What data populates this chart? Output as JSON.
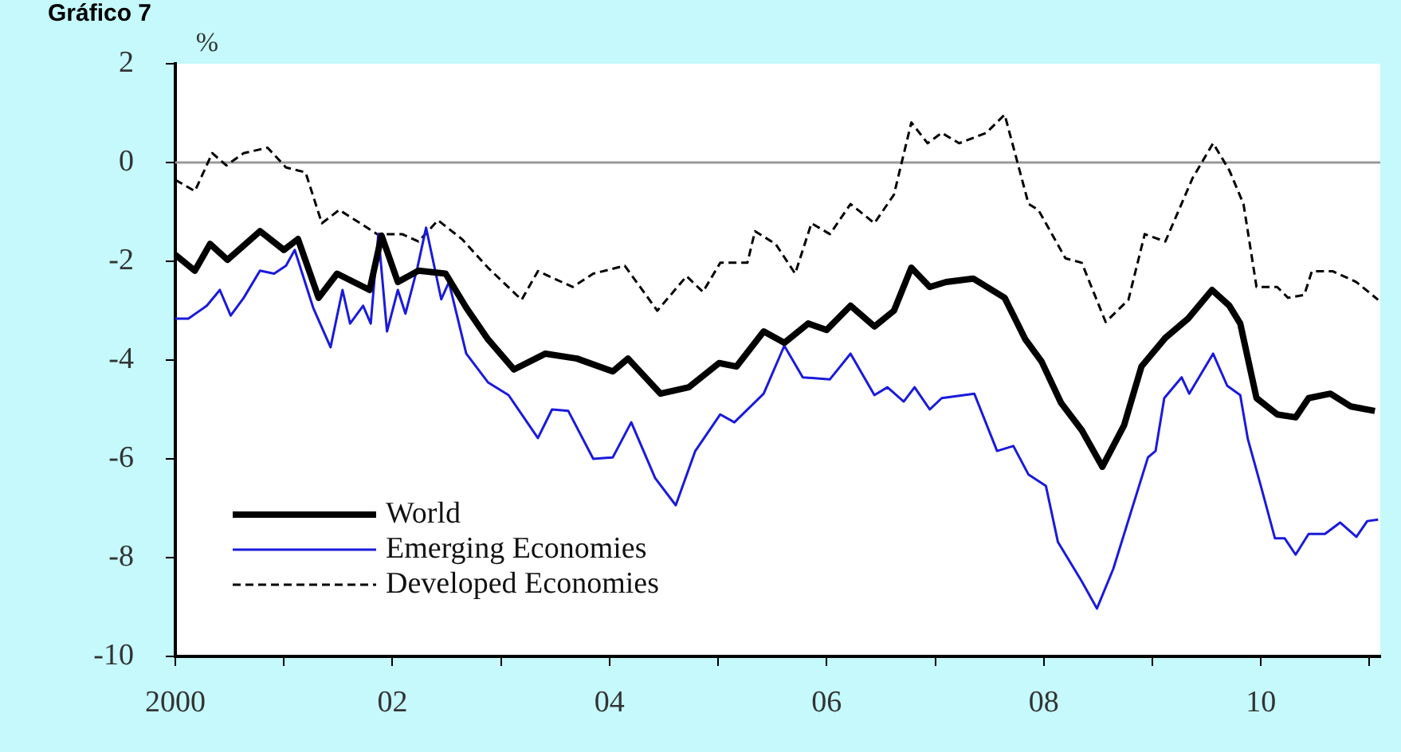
{
  "chart_data": {
    "type": "line",
    "title": "Gráfico 7",
    "ylabel": "%",
    "xlim": [
      2000,
      2011.1
    ],
    "xticks": [
      {
        "value": 2000,
        "label": "2000"
      },
      {
        "value": 2001,
        "label": null
      },
      {
        "value": 2002,
        "label": "02"
      },
      {
        "value": 2003,
        "label": null
      },
      {
        "value": 2004,
        "label": "04"
      },
      {
        "value": 2005,
        "label": null
      },
      {
        "value": 2006,
        "label": "06"
      },
      {
        "value": 2007,
        "label": null
      },
      {
        "value": 2008,
        "label": "08"
      },
      {
        "value": 2009,
        "label": null
      },
      {
        "value": 2010,
        "label": "10"
      },
      {
        "value": 2011,
        "label": null
      }
    ],
    "ylim": [
      -10,
      2
    ],
    "yticks": [
      -10,
      -8,
      -6,
      -4,
      -2,
      0,
      2
    ],
    "grid": false,
    "legend": "bottom left",
    "marker": "none",
    "ref_lines": [
      {
        "axis": "y",
        "value": 0,
        "color": "#999999"
      }
    ],
    "series": [
      {
        "name": "World",
        "color": "#000000",
        "line_style": "solid",
        "x": [
          2000,
          2000.18,
          2000.32,
          2000.48,
          2000.78,
          2001.0,
          2001.13,
          2001.32,
          2001.49,
          2001.79,
          2001.9,
          2002.05,
          2002.24,
          2002.49,
          2002.68,
          2002.88,
          2003.12,
          2003.41,
          2003.7,
          2004.03,
          2004.17,
          2004.47,
          2004.73,
          2005.01,
          2005.17,
          2005.42,
          2005.61,
          2005.83,
          2006.0,
          2006.22,
          2006.44,
          2006.62,
          2006.78,
          2006.95,
          2007.1,
          2007.35,
          2007.64,
          2007.83,
          2007.98,
          2008.16,
          2008.35,
          2008.54,
          2008.74,
          2008.9,
          2009.12,
          2009.33,
          2009.55,
          2009.71,
          2009.81,
          2009.96,
          2010.15,
          2010.32,
          2010.44,
          2010.64,
          2010.83,
          2011.05
        ],
        "values": [
          -1.87,
          -2.19,
          -1.65,
          -1.97,
          -1.39,
          -1.77,
          -1.55,
          -2.74,
          -2.25,
          -2.58,
          -1.48,
          -2.42,
          -2.19,
          -2.25,
          -2.94,
          -3.58,
          -4.19,
          -3.87,
          -3.97,
          -4.23,
          -3.97,
          -4.68,
          -4.55,
          -4.06,
          -4.13,
          -3.42,
          -3.65,
          -3.26,
          -3.39,
          -2.9,
          -3.32,
          -3.0,
          -2.13,
          -2.52,
          -2.42,
          -2.35,
          -2.74,
          -3.58,
          -4.03,
          -4.87,
          -5.42,
          -6.16,
          -5.32,
          -4.13,
          -3.55,
          -3.16,
          -2.58,
          -2.9,
          -3.26,
          -4.77,
          -5.1,
          -5.16,
          -4.77,
          -4.68,
          -4.94,
          -5.03
        ]
      },
      {
        "name": "Emerging Economies",
        "color": "#1a1adc",
        "line_style": "solid",
        "x": [
          2000,
          2000.12,
          2000.29,
          2000.41,
          2000.51,
          2000.63,
          2000.78,
          2000.91,
          2001.02,
          2001.1,
          2001.27,
          2001.43,
          2001.54,
          2001.61,
          2001.73,
          2001.8,
          2001.87,
          2001.95,
          2002.05,
          2002.12,
          2002.23,
          2002.31,
          2002.45,
          2002.52,
          2002.68,
          2002.88,
          2003.07,
          2003.34,
          2003.47,
          2003.62,
          2003.85,
          2004.03,
          2004.2,
          2004.42,
          2004.61,
          2004.79,
          2005.02,
          2005.15,
          2005.42,
          2005.61,
          2005.78,
          2006.03,
          2006.22,
          2006.44,
          2006.56,
          2006.71,
          2006.81,
          2006.95,
          2007.06,
          2007.36,
          2007.57,
          2007.72,
          2007.86,
          2008.02,
          2008.13,
          2008.35,
          2008.49,
          2008.64,
          2008.96,
          2009.03,
          2009.11,
          2009.27,
          2009.34,
          2009.56,
          2009.69,
          2009.81,
          2009.88,
          2010.0,
          2010.13,
          2010.22,
          2010.32,
          2010.44,
          2010.59,
          2010.73,
          2010.88,
          2010.98,
          2011.08
        ],
        "values": [
          -3.16,
          -3.16,
          -2.9,
          -2.58,
          -3.1,
          -2.74,
          -2.19,
          -2.25,
          -2.09,
          -1.77,
          -2.94,
          -3.74,
          -2.58,
          -3.26,
          -2.9,
          -3.26,
          -1.45,
          -3.42,
          -2.58,
          -3.06,
          -2.13,
          -1.32,
          -2.77,
          -2.42,
          -3.87,
          -4.45,
          -4.71,
          -5.58,
          -5.0,
          -5.03,
          -6.0,
          -5.97,
          -5.26,
          -6.39,
          -6.94,
          -5.84,
          -5.1,
          -5.26,
          -4.68,
          -3.71,
          -4.35,
          -4.39,
          -3.87,
          -4.71,
          -4.55,
          -4.84,
          -4.55,
          -5.0,
          -4.77,
          -4.68,
          -5.84,
          -5.74,
          -6.32,
          -6.55,
          -7.68,
          -8.48,
          -9.03,
          -8.23,
          -5.97,
          -5.84,
          -4.77,
          -4.35,
          -4.68,
          -3.87,
          -4.52,
          -4.71,
          -5.6,
          -6.55,
          -7.61,
          -7.61,
          -7.94,
          -7.52,
          -7.52,
          -7.29,
          -7.58,
          -7.26,
          -7.23
        ]
      },
      {
        "name": "Developed Economies",
        "color": "#000000",
        "line_style": "dashed",
        "x": [
          2000,
          2000.18,
          2000.34,
          2000.47,
          2000.63,
          2000.85,
          2001.02,
          2001.2,
          2001.35,
          2001.51,
          2001.86,
          2002.09,
          2002.24,
          2002.42,
          2002.64,
          2002.88,
          2003.19,
          2003.34,
          2003.66,
          2003.85,
          2004.14,
          2004.44,
          2004.71,
          2004.86,
          2005.02,
          2005.27,
          2005.34,
          2005.53,
          2005.71,
          2005.86,
          2006.03,
          2006.22,
          2006.44,
          2006.62,
          2006.78,
          2006.93,
          2007.06,
          2007.22,
          2007.47,
          2007.64,
          2007.86,
          2007.95,
          2008.2,
          2008.35,
          2008.57,
          2008.78,
          2008.93,
          2009.12,
          2009.37,
          2009.56,
          2009.71,
          2009.84,
          2009.96,
          2010.15,
          2010.25,
          2010.4,
          2010.47,
          2010.66,
          2010.88,
          2011.08
        ],
        "values": [
          -0.35,
          -0.58,
          0.19,
          -0.06,
          0.19,
          0.3,
          -0.1,
          -0.2,
          -1.23,
          -0.96,
          -1.45,
          -1.45,
          -1.6,
          -1.17,
          -1.55,
          -2.13,
          -2.78,
          -2.2,
          -2.52,
          -2.25,
          -2.09,
          -3.0,
          -2.3,
          -2.62,
          -2.03,
          -2.03,
          -1.39,
          -1.65,
          -2.25,
          -1.23,
          -1.45,
          -0.84,
          -1.23,
          -0.65,
          0.81,
          0.39,
          0.6,
          0.39,
          0.6,
          0.97,
          -0.84,
          -0.96,
          -1.94,
          -2.03,
          -3.23,
          -2.78,
          -1.45,
          -1.6,
          -0.32,
          0.39,
          -0.16,
          -0.84,
          -2.52,
          -2.52,
          -2.74,
          -2.68,
          -2.2,
          -2.2,
          -2.42,
          -2.78
        ]
      }
    ]
  }
}
